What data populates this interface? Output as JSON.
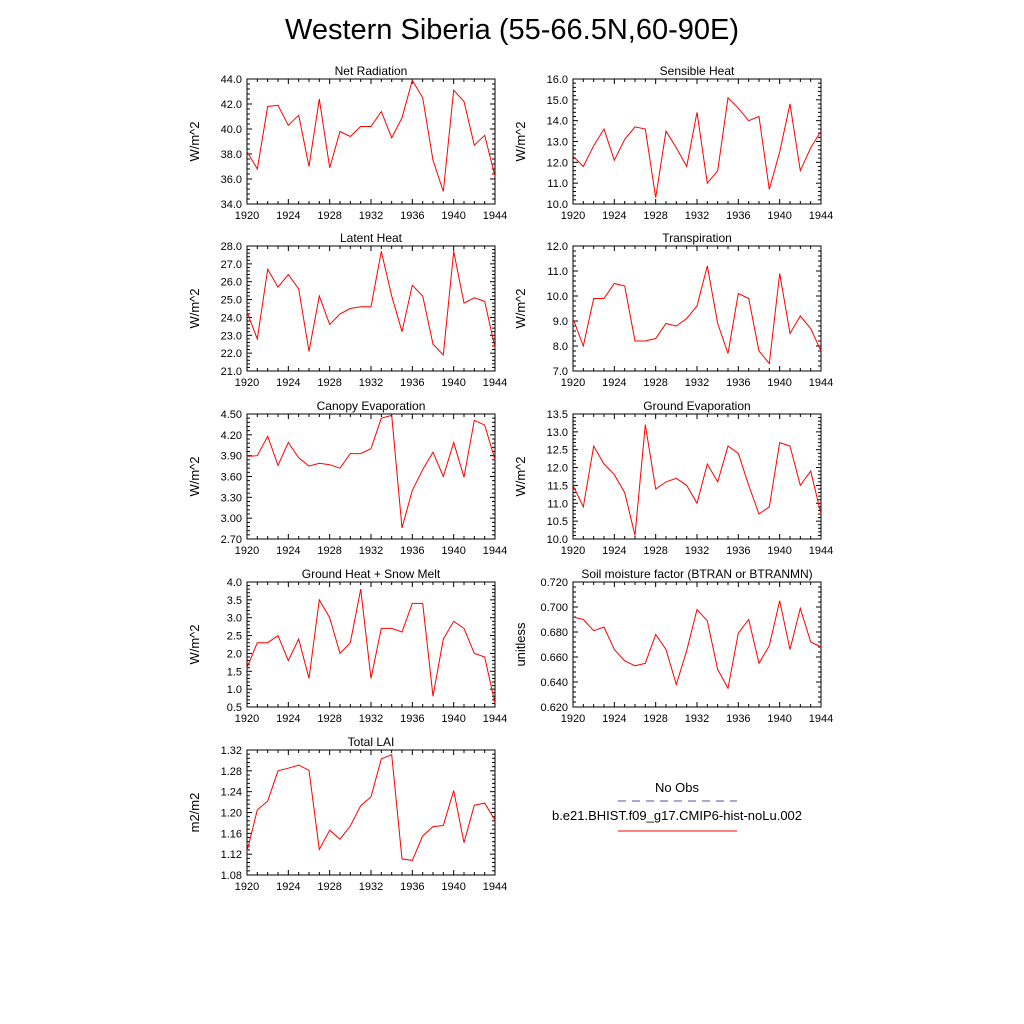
{
  "title": "Western Siberia (55-66.5N,60-90E)",
  "legend": {
    "entries": [
      {
        "label": "No Obs",
        "color": "#5a4f9a",
        "style": "dashed"
      },
      {
        "label": "b.e21.BHIST.f09_g17.CMIP6-hist-noLu.002",
        "color": "#ff0000",
        "style": "solid"
      }
    ]
  },
  "chart_data": [
    {
      "type": "line",
      "title": "Net Radiation",
      "xlabel": "",
      "ylabel": "W/m^2",
      "xlim": [
        1920,
        1944
      ],
      "ylim": [
        34,
        44
      ],
      "xticks": [
        "1920",
        "1924",
        "1928",
        "1932",
        "1936",
        "1940",
        "1944"
      ],
      "yticks": [
        "34.0",
        "36.0",
        "38.0",
        "40.0",
        "42.0",
        "44.0"
      ],
      "x": [
        1920,
        1921,
        1922,
        1923,
        1924,
        1925,
        1926,
        1927,
        1928,
        1929,
        1930,
        1931,
        1932,
        1933,
        1934,
        1935,
        1936,
        1937,
        1938,
        1939,
        1940,
        1941,
        1942,
        1943,
        1944
      ],
      "series": [
        {
          "color": "#ff0000",
          "values": [
            38.2,
            36.8,
            41.8,
            41.9,
            40.3,
            41.1,
            37.0,
            42.4,
            36.9,
            39.8,
            39.4,
            40.2,
            40.2,
            41.4,
            39.3,
            40.9,
            43.9,
            42.5,
            37.5,
            35.0,
            43.1,
            42.2,
            38.7,
            39.5,
            36.2
          ]
        }
      ]
    },
    {
      "type": "line",
      "title": "Sensible Heat",
      "xlabel": "",
      "ylabel": "W/m^2",
      "xlim": [
        1920,
        1944
      ],
      "ylim": [
        10,
        16
      ],
      "xticks": [
        "1920",
        "1924",
        "1928",
        "1932",
        "1936",
        "1940",
        "1944"
      ],
      "yticks": [
        "10.0",
        "11.0",
        "12.0",
        "13.0",
        "14.0",
        "15.0",
        "16.0"
      ],
      "x": [
        1920,
        1921,
        1922,
        1923,
        1924,
        1925,
        1926,
        1927,
        1928,
        1929,
        1930,
        1931,
        1932,
        1933,
        1934,
        1935,
        1936,
        1937,
        1938,
        1939,
        1940,
        1941,
        1942,
        1943,
        1944
      ],
      "series": [
        {
          "color": "#ff0000",
          "values": [
            12.3,
            11.8,
            12.8,
            13.6,
            12.1,
            13.1,
            13.7,
            13.6,
            10.3,
            13.5,
            12.7,
            11.8,
            14.4,
            11.0,
            11.6,
            15.1,
            14.6,
            14.0,
            14.2,
            10.7,
            12.5,
            14.8,
            11.6,
            12.7,
            13.5
          ]
        }
      ]
    },
    {
      "type": "line",
      "title": "Latent Heat",
      "xlabel": "",
      "ylabel": "W/m^2",
      "xlim": [
        1920,
        1944
      ],
      "ylim": [
        21,
        28
      ],
      "xticks": [
        "1920",
        "1924",
        "1928",
        "1932",
        "1936",
        "1940",
        "1944"
      ],
      "yticks": [
        "21.0",
        "22.0",
        "23.0",
        "24.0",
        "25.0",
        "26.0",
        "27.0",
        "28.0"
      ],
      "x": [
        1920,
        1921,
        1922,
        1923,
        1924,
        1925,
        1926,
        1927,
        1928,
        1929,
        1930,
        1931,
        1932,
        1933,
        1934,
        1935,
        1936,
        1937,
        1938,
        1939,
        1940,
        1941,
        1942,
        1943,
        1944
      ],
      "series": [
        {
          "color": "#ff0000",
          "values": [
            24.3,
            22.8,
            26.7,
            25.7,
            26.4,
            25.6,
            22.1,
            25.2,
            23.6,
            24.2,
            24.5,
            24.6,
            24.6,
            27.7,
            25.2,
            23.2,
            25.8,
            25.2,
            22.5,
            21.9,
            27.7,
            24.8,
            25.1,
            24.9,
            22.3
          ]
        }
      ]
    },
    {
      "type": "line",
      "title": "Transpiration",
      "xlabel": "",
      "ylabel": "W/m^2",
      "xlim": [
        1920,
        1944
      ],
      "ylim": [
        7,
        12
      ],
      "xticks": [
        "1920",
        "1924",
        "1928",
        "1932",
        "1936",
        "1940",
        "1944"
      ],
      "yticks": [
        "7.0",
        "8.0",
        "9.0",
        "10.0",
        "11.0",
        "12.0"
      ],
      "x": [
        1920,
        1921,
        1922,
        1923,
        1924,
        1925,
        1926,
        1927,
        1928,
        1929,
        1930,
        1931,
        1932,
        1933,
        1934,
        1935,
        1936,
        1937,
        1938,
        1939,
        1940,
        1941,
        1942,
        1943,
        1944
      ],
      "series": [
        {
          "color": "#ff0000",
          "values": [
            9.1,
            8.0,
            9.9,
            9.9,
            10.5,
            10.4,
            8.2,
            8.2,
            8.3,
            8.9,
            8.8,
            9.1,
            9.6,
            11.2,
            8.9,
            7.7,
            10.1,
            9.9,
            7.8,
            7.3,
            10.9,
            8.5,
            9.2,
            8.7,
            7.8
          ]
        }
      ]
    },
    {
      "type": "line",
      "title": "Canopy Evaporation",
      "xlabel": "",
      "ylabel": "W/m^2",
      "xlim": [
        1920,
        1944
      ],
      "ylim": [
        2.7,
        4.5
      ],
      "xticks": [
        "1920",
        "1924",
        "1928",
        "1932",
        "1936",
        "1940",
        "1944"
      ],
      "yticks": [
        "2.70",
        "3.00",
        "3.30",
        "3.60",
        "3.90",
        "4.20",
        "4.50"
      ],
      "x": [
        1920,
        1921,
        1922,
        1923,
        1924,
        1925,
        1926,
        1927,
        1928,
        1929,
        1930,
        1931,
        1932,
        1933,
        1934,
        1935,
        1936,
        1937,
        1938,
        1939,
        1940,
        1941,
        1942,
        1943,
        1944
      ],
      "series": [
        {
          "color": "#ff0000",
          "values": [
            3.89,
            3.9,
            4.18,
            3.76,
            4.09,
            3.87,
            3.75,
            3.79,
            3.77,
            3.72,
            3.93,
            3.93,
            4.0,
            4.44,
            4.48,
            2.86,
            3.4,
            3.7,
            3.95,
            3.6,
            4.09,
            3.59,
            4.41,
            4.34,
            3.84
          ]
        }
      ]
    },
    {
      "type": "line",
      "title": "Ground Evaporation",
      "xlabel": "",
      "ylabel": "W/m^2",
      "xlim": [
        1920,
        1944
      ],
      "ylim": [
        10,
        13.5
      ],
      "xticks": [
        "1920",
        "1924",
        "1928",
        "1932",
        "1936",
        "1940",
        "1944"
      ],
      "yticks": [
        "10.0",
        "10.5",
        "11.0",
        "11.5",
        "12.0",
        "12.5",
        "13.0",
        "13.5"
      ],
      "x": [
        1920,
        1921,
        1922,
        1923,
        1924,
        1925,
        1926,
        1927,
        1928,
        1929,
        1930,
        1931,
        1932,
        1933,
        1934,
        1935,
        1936,
        1937,
        1938,
        1939,
        1940,
        1941,
        1942,
        1943,
        1944
      ],
      "series": [
        {
          "color": "#ff0000",
          "values": [
            11.5,
            10.9,
            12.6,
            12.1,
            11.8,
            11.3,
            10.1,
            13.2,
            11.4,
            11.6,
            11.7,
            11.5,
            11.0,
            12.1,
            11.6,
            12.6,
            12.4,
            11.5,
            10.7,
            10.9,
            12.7,
            12.6,
            11.5,
            11.9,
            10.7
          ]
        }
      ]
    },
    {
      "type": "line",
      "title": "Ground Heat + Snow Melt",
      "xlabel": "",
      "ylabel": "W/m^2",
      "xlim": [
        1920,
        1944
      ],
      "ylim": [
        0.5,
        4.0
      ],
      "xticks": [
        "1920",
        "1924",
        "1928",
        "1932",
        "1936",
        "1940",
        "1944"
      ],
      "yticks": [
        "0.5",
        "1.0",
        "1.5",
        "2.0",
        "2.5",
        "3.0",
        "3.5",
        "4.0"
      ],
      "x": [
        1920,
        1921,
        1922,
        1923,
        1924,
        1925,
        1926,
        1927,
        1928,
        1929,
        1930,
        1931,
        1932,
        1933,
        1934,
        1935,
        1936,
        1937,
        1938,
        1939,
        1940,
        1941,
        1942,
        1943,
        1944
      ],
      "series": [
        {
          "color": "#ff0000",
          "values": [
            1.6,
            2.3,
            2.3,
            2.5,
            1.8,
            2.4,
            1.3,
            3.5,
            3.0,
            2.0,
            2.3,
            3.8,
            1.3,
            2.7,
            2.7,
            2.6,
            3.4,
            3.4,
            0.8,
            2.4,
            2.9,
            2.7,
            2.0,
            1.9,
            0.6
          ]
        }
      ]
    },
    {
      "type": "line",
      "title": "Soil moisture factor (BTRAN or BTRANMN)",
      "xlabel": "",
      "ylabel": "unitless",
      "xlim": [
        1920,
        1944
      ],
      "ylim": [
        0.62,
        0.72
      ],
      "xticks": [
        "1920",
        "1924",
        "1928",
        "1932",
        "1936",
        "1940",
        "1944"
      ],
      "yticks": [
        "0.620",
        "0.640",
        "0.660",
        "0.680",
        "0.700",
        "0.720"
      ],
      "x": [
        1920,
        1921,
        1922,
        1923,
        1924,
        1925,
        1926,
        1927,
        1928,
        1929,
        1930,
        1931,
        1932,
        1933,
        1934,
        1935,
        1936,
        1937,
        1938,
        1939,
        1940,
        1941,
        1942,
        1943,
        1944
      ],
      "series": [
        {
          "color": "#ff0000",
          "values": [
            0.692,
            0.69,
            0.681,
            0.684,
            0.666,
            0.657,
            0.653,
            0.655,
            0.678,
            0.666,
            0.638,
            0.665,
            0.698,
            0.689,
            0.65,
            0.635,
            0.679,
            0.69,
            0.655,
            0.669,
            0.705,
            0.666,
            0.699,
            0.672,
            0.668
          ]
        }
      ]
    },
    {
      "type": "line",
      "title": "Total LAI",
      "xlabel": "",
      "ylabel": "m2/m2",
      "xlim": [
        1920,
        1944
      ],
      "ylim": [
        1.08,
        1.32
      ],
      "xticks": [
        "1920",
        "1924",
        "1928",
        "1932",
        "1936",
        "1940",
        "1944"
      ],
      "yticks": [
        "1.08",
        "1.12",
        "1.16",
        "1.20",
        "1.24",
        "1.28",
        "1.32"
      ],
      "x": [
        1920,
        1921,
        1922,
        1923,
        1924,
        1925,
        1926,
        1927,
        1928,
        1929,
        1930,
        1931,
        1932,
        1933,
        1934,
        1935,
        1936,
        1937,
        1938,
        1939,
        1940,
        1941,
        1942,
        1943,
        1944
      ],
      "series": [
        {
          "color": "#ff0000",
          "values": [
            1.125,
            1.205,
            1.222,
            1.28,
            1.285,
            1.291,
            1.281,
            1.129,
            1.166,
            1.149,
            1.174,
            1.213,
            1.23,
            1.303,
            1.311,
            1.111,
            1.108,
            1.155,
            1.173,
            1.175,
            1.242,
            1.142,
            1.214,
            1.218,
            1.185
          ]
        }
      ]
    }
  ]
}
